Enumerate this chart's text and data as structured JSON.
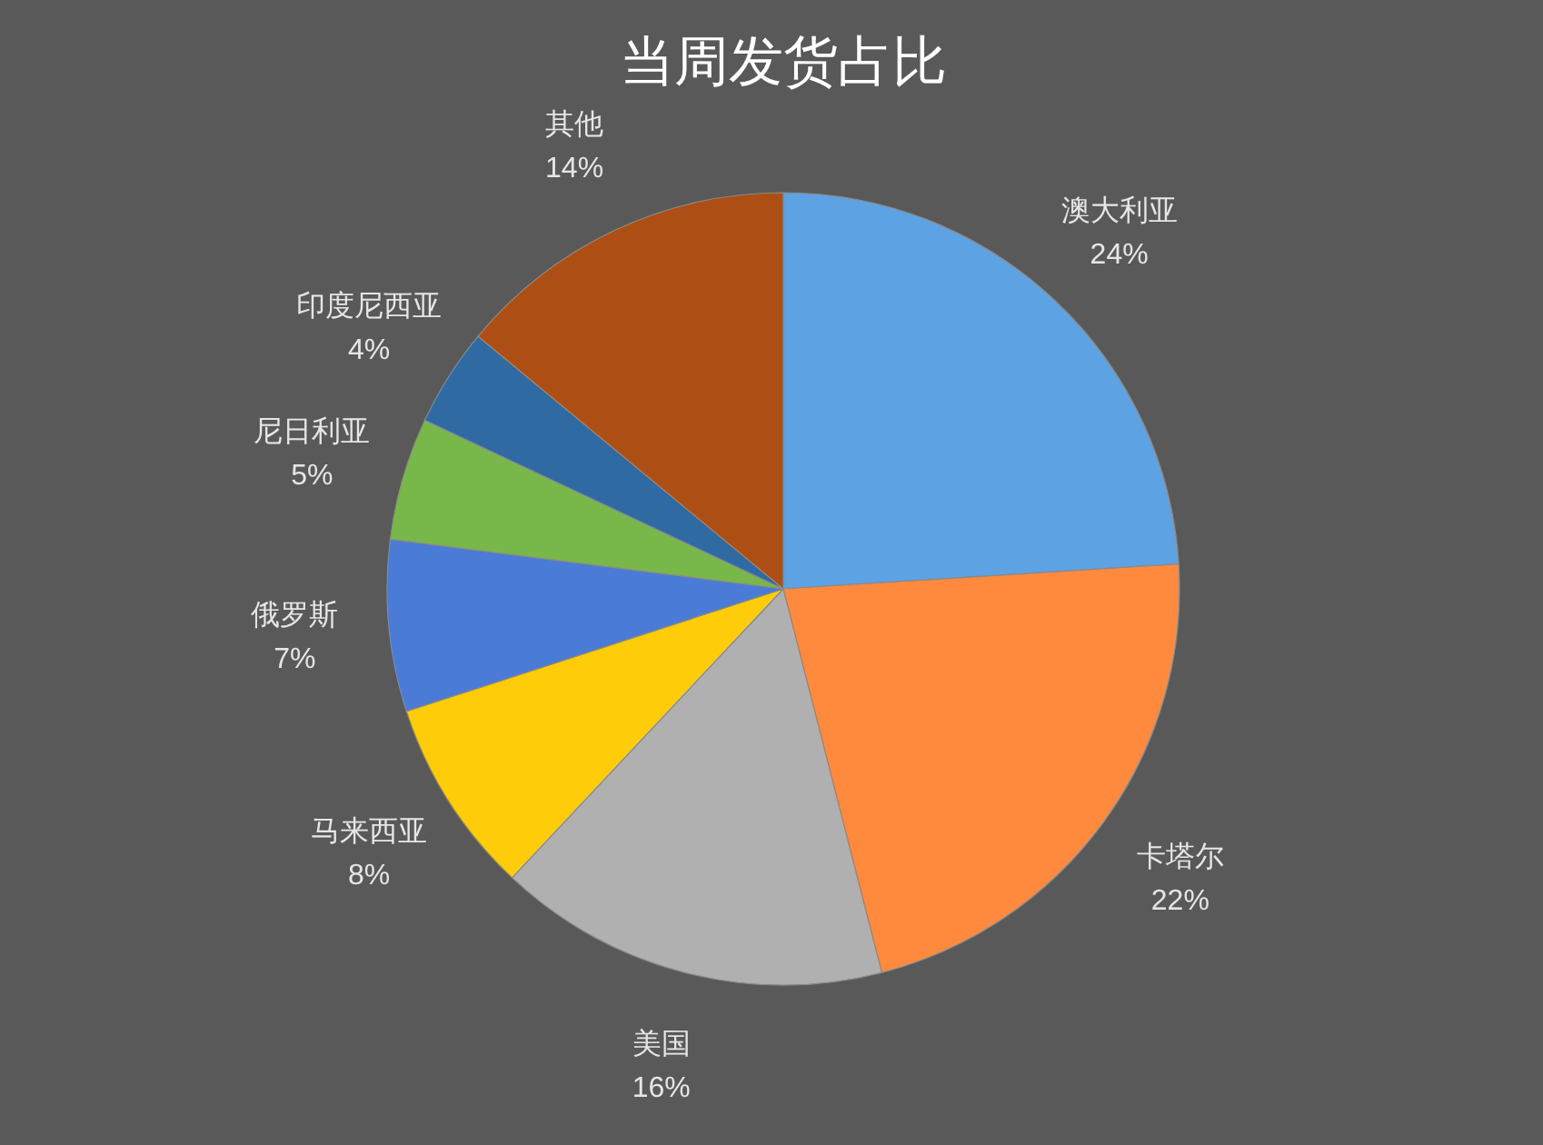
{
  "chart_data": {
    "type": "pie",
    "title": "当周发货占比",
    "categories": [
      "澳大利亚",
      "卡塔尔",
      "美国",
      "马来西亚",
      "俄罗斯",
      "尼日利亚",
      "印度尼西亚",
      "其他"
    ],
    "values": [
      24,
      22,
      16,
      8,
      7,
      5,
      4,
      14
    ],
    "value_labels": [
      "24%",
      "22%",
      "16%",
      "8%",
      "7%",
      "5%",
      "4%",
      "14%"
    ],
    "colors": [
      "#5da2e3",
      "#ff8a3d",
      "#b0b0b0",
      "#ffcc0a",
      "#4a7bd6",
      "#78b84a",
      "#2f6aa3",
      "#ad4f14"
    ]
  }
}
